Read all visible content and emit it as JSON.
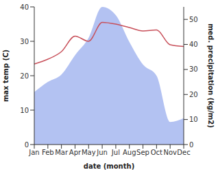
{
  "chart_data": {
    "type": "line",
    "xlabel": "date (month)",
    "ylabel": "max temp (C)",
    "y2label": "med. precipitation (kg/m2)",
    "categories": [
      "Jan",
      "Feb",
      "Mar",
      "Apr",
      "May",
      "Jun",
      "Jul",
      "Aug",
      "Sep",
      "Oct",
      "Nov",
      "Dec"
    ],
    "series": [
      {
        "type": "line",
        "color": "#c8505a",
        "values": [
          23.4,
          24.8,
          27,
          31.5,
          30,
          35.5,
          35,
          34,
          33,
          33.3,
          29,
          28.5
        ]
      },
      {
        "type": "area",
        "axis": "y2",
        "color": "#b3c2f2",
        "values": [
          21,
          25,
          28,
          35.7,
          42.6,
          55,
          51.7,
          41,
          32,
          27.5,
          9,
          10.5
        ]
      }
    ],
    "ylim": [
      0,
      40
    ],
    "yticks": [
      0,
      10,
      20,
      30,
      40
    ],
    "y2lim": [
      0,
      55
    ],
    "y2ticks": [
      0,
      10,
      20,
      30,
      40,
      50
    ]
  }
}
